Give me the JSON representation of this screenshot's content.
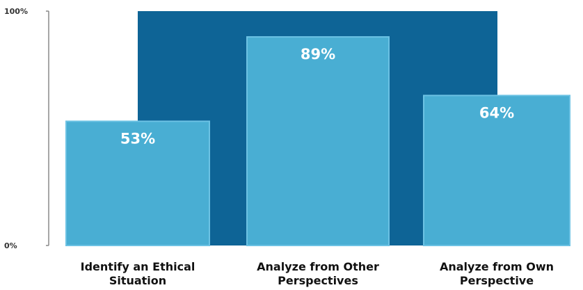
{
  "chart_data": {
    "type": "bar",
    "categories": [
      [
        "Identify an Ethical",
        "Situation"
      ],
      [
        "Analyze from Other",
        "Perspectives"
      ],
      [
        "Analyze from Own",
        "Perspective"
      ]
    ],
    "values": [
      53,
      89,
      64
    ],
    "value_labels": [
      "53%",
      "89%",
      "64%"
    ],
    "ylim": [
      0,
      100
    ],
    "yticks": [
      {
        "value": 100,
        "label": "100%"
      },
      {
        "value": 0,
        "label": "0%"
      }
    ],
    "background_block_value": 100,
    "grid": false,
    "legend": "none",
    "colors": {
      "bar": "#49aed3",
      "bar_edge": "#6cc2e4",
      "background_block": "#0e6496",
      "axis": "#888888"
    }
  }
}
